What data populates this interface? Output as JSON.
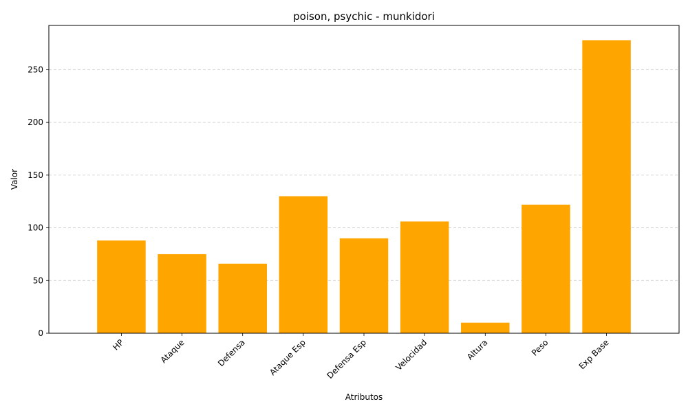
{
  "chart_data": {
    "type": "bar",
    "title": "poison, psychic - munkidori",
    "xlabel": "Atributos",
    "ylabel": "Valor",
    "categories": [
      "HP",
      "Ataque",
      "Defensa",
      "Ataque Esp",
      "Defensa Esp",
      "Velocidad",
      "Altura",
      "Peso",
      "Exp Base"
    ],
    "values": [
      88,
      75,
      66,
      130,
      90,
      106,
      10,
      122,
      278
    ],
    "ylim": [
      0,
      292
    ],
    "yticks": [
      0,
      50,
      100,
      150,
      200,
      250
    ],
    "grid": "y-dashed",
    "bar_color": "#ffa500"
  }
}
